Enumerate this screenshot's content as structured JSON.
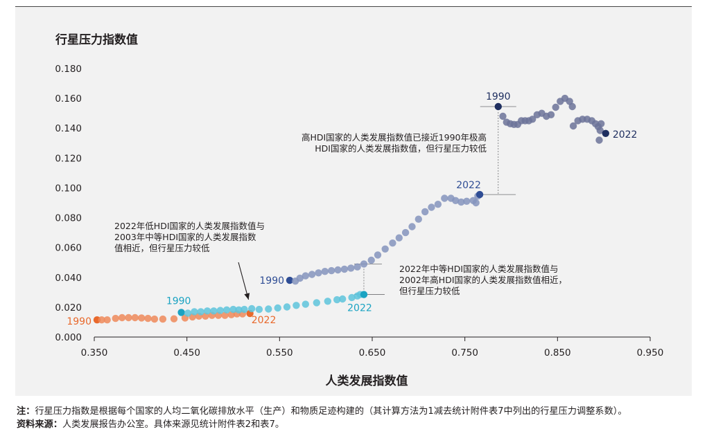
{
  "chart_data": {
    "type": "scatter",
    "title": "",
    "ylabel": "行星压力指数值",
    "xlabel": "人类发展指数值",
    "xlim": [
      0.35,
      0.95
    ],
    "ylim": [
      0.0,
      0.18
    ],
    "xticks": [
      "0.350",
      "0.450",
      "0.550",
      "0.650",
      "0.750",
      "0.850",
      "0.950"
    ],
    "yticks": [
      "0.000",
      "0.020",
      "0.040",
      "0.060",
      "0.080",
      "0.100",
      "0.120",
      "0.140",
      "0.160",
      "0.180"
    ],
    "grid": false,
    "colors": {
      "low": "#ef8a5b",
      "low_end": "#e8692c",
      "medium": "#5ec4dc",
      "medium_end": "#1aa3c2",
      "high": "#8594bd",
      "high_end": "#2f4d95",
      "veryhigh": "#6c7399",
      "veryhigh_end": "#1f2f60"
    },
    "series": [
      {
        "key": "low",
        "start_label": "1990",
        "end_label": "2022",
        "points": [
          [
            0.353,
            0.0115
          ],
          [
            0.358,
            0.0115
          ],
          [
            0.364,
            0.0115
          ],
          [
            0.373,
            0.0125
          ],
          [
            0.38,
            0.013
          ],
          [
            0.387,
            0.013
          ],
          [
            0.394,
            0.013
          ],
          [
            0.401,
            0.0128
          ],
          [
            0.408,
            0.0125
          ],
          [
            0.415,
            0.012
          ],
          [
            0.424,
            0.012
          ],
          [
            0.436,
            0.0122
          ],
          [
            0.448,
            0.0128
          ],
          [
            0.456,
            0.0135
          ],
          [
            0.463,
            0.014
          ],
          [
            0.47,
            0.014
          ],
          [
            0.477,
            0.0145
          ],
          [
            0.484,
            0.0145
          ],
          [
            0.491,
            0.0145
          ],
          [
            0.498,
            0.015
          ],
          [
            0.504,
            0.0155
          ],
          [
            0.51,
            0.0155
          ],
          [
            0.518,
            0.0158
          ]
        ]
      },
      {
        "key": "medium",
        "start_label": "1990",
        "end_label": "2022",
        "points": [
          [
            0.444,
            0.0165
          ],
          [
            0.451,
            0.016
          ],
          [
            0.458,
            0.017
          ],
          [
            0.465,
            0.017
          ],
          [
            0.472,
            0.0175
          ],
          [
            0.479,
            0.0175
          ],
          [
            0.486,
            0.0178
          ],
          [
            0.493,
            0.0182
          ],
          [
            0.5,
            0.0185
          ],
          [
            0.506,
            0.0182
          ],
          [
            0.512,
            0.0185
          ],
          [
            0.52,
            0.019
          ],
          [
            0.528,
            0.0185
          ],
          [
            0.538,
            0.0188
          ],
          [
            0.548,
            0.0195
          ],
          [
            0.558,
            0.0202
          ],
          [
            0.568,
            0.0212
          ],
          [
            0.578,
            0.022
          ],
          [
            0.59,
            0.023
          ],
          [
            0.602,
            0.024
          ],
          [
            0.612,
            0.025
          ],
          [
            0.618,
            0.0255
          ],
          [
            0.628,
            0.0265
          ],
          [
            0.634,
            0.0275
          ],
          [
            0.637,
            0.0285
          ],
          [
            0.641,
            0.0285
          ]
        ]
      },
      {
        "key": "high",
        "start_label": "1990",
        "end_label": "2022",
        "points": [
          [
            0.561,
            0.038
          ],
          [
            0.567,
            0.0375
          ],
          [
            0.572,
            0.0395
          ],
          [
            0.578,
            0.041
          ],
          [
            0.585,
            0.042
          ],
          [
            0.592,
            0.043
          ],
          [
            0.599,
            0.044
          ],
          [
            0.606,
            0.0445
          ],
          [
            0.613,
            0.045
          ],
          [
            0.62,
            0.0455
          ],
          [
            0.627,
            0.0462
          ],
          [
            0.634,
            0.047
          ],
          [
            0.641,
            0.049
          ],
          [
            0.649,
            0.0515
          ],
          [
            0.656,
            0.055
          ],
          [
            0.664,
            0.059
          ],
          [
            0.672,
            0.063
          ],
          [
            0.679,
            0.0665
          ],
          [
            0.686,
            0.07
          ],
          [
            0.693,
            0.074
          ],
          [
            0.7,
            0.079
          ],
          [
            0.707,
            0.084
          ],
          [
            0.714,
            0.087
          ],
          [
            0.721,
            0.089
          ],
          [
            0.728,
            0.093
          ],
          [
            0.735,
            0.093
          ],
          [
            0.74,
            0.0915
          ],
          [
            0.746,
            0.0905
          ],
          [
            0.752,
            0.091
          ],
          [
            0.759,
            0.0915
          ],
          [
            0.762,
            0.09
          ],
          [
            0.764,
            0.0945
          ],
          [
            0.766,
            0.0955
          ]
        ]
      },
      {
        "key": "veryhigh",
        "start_label": "1990",
        "end_label": "2022",
        "points": [
          [
            0.786,
            0.1545
          ],
          [
            0.791,
            0.148
          ],
          [
            0.795,
            0.144
          ],
          [
            0.799,
            0.143
          ],
          [
            0.803,
            0.1425
          ],
          [
            0.807,
            0.1425
          ],
          [
            0.811,
            0.145
          ],
          [
            0.815,
            0.145
          ],
          [
            0.819,
            0.145
          ],
          [
            0.823,
            0.146
          ],
          [
            0.828,
            0.149
          ],
          [
            0.833,
            0.15
          ],
          [
            0.838,
            0.148
          ],
          [
            0.843,
            0.149
          ],
          [
            0.848,
            0.154
          ],
          [
            0.853,
            0.158
          ],
          [
            0.858,
            0.16
          ],
          [
            0.863,
            0.158
          ],
          [
            0.866,
            0.1545
          ],
          [
            0.867,
            0.1415
          ],
          [
            0.872,
            0.145
          ],
          [
            0.877,
            0.146
          ],
          [
            0.882,
            0.146
          ],
          [
            0.887,
            0.145
          ],
          [
            0.891,
            0.143
          ],
          [
            0.894,
            0.141
          ],
          [
            0.897,
            0.143
          ],
          [
            0.896,
            0.1385
          ],
          [
            0.895,
            0.132
          ],
          [
            0.902,
            0.1365
          ]
        ]
      }
    ],
    "annotations": [
      {
        "id": "low-2022",
        "lines": [
          "2022年低HDI国家的人类发展指数值与",
          "2003年中等HDI国家的人类发展指数",
          "值相近，但行星压力较低"
        ]
      },
      {
        "id": "medium-2022",
        "lines": [
          "2022年中等HDI国家的人类发展指数值与",
          "2002年高HDI国家的人类发展指数值相近，",
          "但行星压力较低"
        ]
      },
      {
        "id": "high-2022",
        "lines": [
          "高HDI国家的人类发展指数值已接近1990年极高",
          "HDI国家的人类发展指数值，但行星压力较低"
        ]
      }
    ]
  },
  "footnote": {
    "note_label": "注：",
    "note_text": "行星压力指数是根据每个国家的人均二氧化碳排放水平（生产）和物质足迹构建的（其计算方法为1减去统计附件表7中列出的行星压力调整系数）。",
    "source_label": "资料来源：",
    "source_text": "人类发展报告办公室。具体来源见统计附件表2和表7。"
  }
}
